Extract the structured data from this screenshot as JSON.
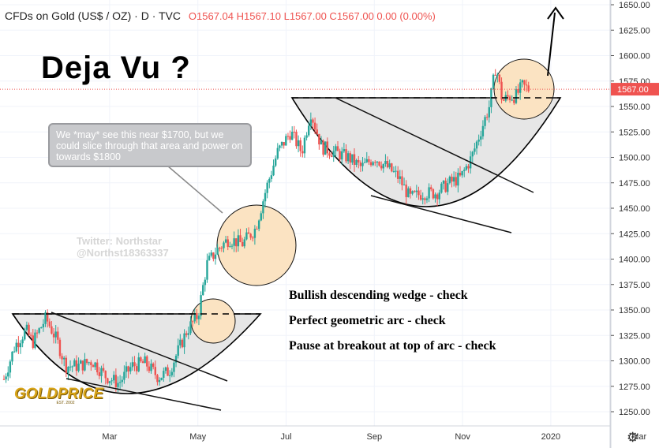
{
  "header": {
    "symbol": "CFDs on Gold (US$ / OZ) · D · TVC",
    "ohlc": "O1567.04  H1567.10  L1567.00  C1567.00  0.00 (0.00%)"
  },
  "headline": "Deja Vu ?",
  "callout": "We *may* see this near $1700, but we could slice through that area and power on towards $1800",
  "watermark": [
    "Twitter: Northstar",
    "@Northst18363337"
  ],
  "notes": [
    "Bullish descending wedge - check",
    "Perfect geometric arc - check",
    "Pause at breakout at top of arc - check"
  ],
  "logo": {
    "name": "GOLDPRICE",
    "est": "EST. 2002"
  },
  "icons": {
    "settings": "gear-icon"
  },
  "colors": {
    "up": "#26a69a",
    "down": "#ef5350",
    "arc_fill": "#e6e6e6",
    "circle_fill": "#fbe3c2",
    "price_label": "#ef5350"
  },
  "chart_data": {
    "type": "candlestick",
    "title": "CFDs on Gold (US$ / OZ) · D · TVC",
    "xlabel": "",
    "ylabel": "",
    "ylim": [
      1240,
      1650
    ],
    "y_ticks": [
      1250,
      1275,
      1300,
      1325,
      1350,
      1375,
      1400,
      1425,
      1450,
      1475,
      1500,
      1525,
      1550,
      1575,
      1600,
      1625,
      1650
    ],
    "x_ticks": [
      {
        "label": "Mar",
        "t": 1.0
      },
      {
        "label": "May",
        "t": 3.0
      },
      {
        "label": "Jul",
        "t": 5.0
      },
      {
        "label": "Sep",
        "t": 7.0
      },
      {
        "label": "Nov",
        "t": 9.0
      },
      {
        "label": "2020",
        "t": 11.0
      },
      {
        "label": "Mar",
        "t": 13.0
      }
    ],
    "last_price": {
      "label": "1567.00",
      "value": 1567
    },
    "approx_closes": [
      {
        "t": 0.0,
        "v": 1282
      },
      {
        "t": 0.25,
        "v": 1315
      },
      {
        "t": 0.5,
        "v": 1330
      },
      {
        "t": 0.65,
        "v": 1318
      },
      {
        "t": 0.95,
        "v": 1342
      },
      {
        "t": 1.2,
        "v": 1320
      },
      {
        "t": 1.4,
        "v": 1295
      },
      {
        "t": 1.7,
        "v": 1295
      },
      {
        "t": 2.0,
        "v": 1300
      },
      {
        "t": 2.3,
        "v": 1285
      },
      {
        "t": 2.6,
        "v": 1278
      },
      {
        "t": 2.9,
        "v": 1295
      },
      {
        "t": 3.2,
        "v": 1298
      },
      {
        "t": 3.5,
        "v": 1284
      },
      {
        "t": 3.75,
        "v": 1290
      },
      {
        "t": 3.95,
        "v": 1310
      },
      {
        "t": 4.15,
        "v": 1330
      },
      {
        "t": 4.4,
        "v": 1345
      },
      {
        "t": 4.6,
        "v": 1395
      },
      {
        "t": 4.85,
        "v": 1410
      },
      {
        "t": 5.1,
        "v": 1420
      },
      {
        "t": 5.4,
        "v": 1415
      },
      {
        "t": 5.7,
        "v": 1430
      },
      {
        "t": 5.95,
        "v": 1470
      },
      {
        "t": 6.2,
        "v": 1505
      },
      {
        "t": 6.5,
        "v": 1525
      },
      {
        "t": 6.75,
        "v": 1505
      },
      {
        "t": 6.95,
        "v": 1545
      },
      {
        "t": 7.2,
        "v": 1510
      },
      {
        "t": 7.5,
        "v": 1505
      },
      {
        "t": 7.8,
        "v": 1500
      },
      {
        "t": 8.1,
        "v": 1490
      },
      {
        "t": 8.4,
        "v": 1500
      },
      {
        "t": 8.7,
        "v": 1490
      },
      {
        "t": 8.95,
        "v": 1480
      },
      {
        "t": 9.2,
        "v": 1460
      },
      {
        "t": 9.5,
        "v": 1465
      },
      {
        "t": 9.8,
        "v": 1465
      },
      {
        "t": 10.1,
        "v": 1475
      },
      {
        "t": 10.35,
        "v": 1480
      },
      {
        "t": 10.6,
        "v": 1500
      },
      {
        "t": 10.8,
        "v": 1525
      },
      {
        "t": 11.0,
        "v": 1550
      },
      {
        "t": 11.15,
        "v": 1590
      },
      {
        "t": 11.3,
        "v": 1555
      },
      {
        "t": 11.45,
        "v": 1560
      },
      {
        "t": 11.6,
        "v": 1560
      },
      {
        "t": 11.75,
        "v": 1570
      },
      {
        "t": 11.9,
        "v": 1567
      }
    ]
  }
}
